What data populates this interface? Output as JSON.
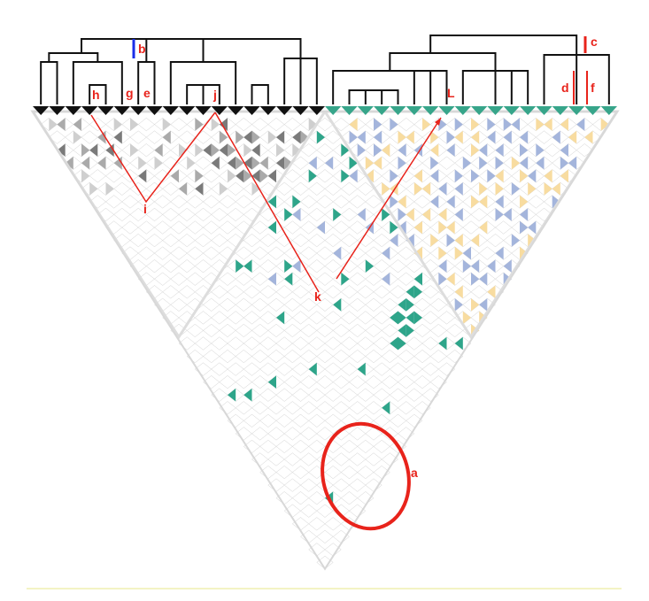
{
  "colors": {
    "annotation": "#e8231b",
    "dendro": "#111111",
    "split_marker": "#1b2ee8",
    "cell_outline": "#d0d0d0",
    "dark_grey": "#7a7a7a",
    "mid_grey": "#aaaaaa",
    "light_grey": "#cfcfcf",
    "teal": "#2ea58a",
    "lavender": "#a4b5dc",
    "peach": "#f8dca0",
    "tip_black": "#111111",
    "tip_teal": "#37a58a"
  },
  "labels": {
    "a": "a",
    "b": "b",
    "c": "c",
    "d": "d",
    "e": "e",
    "f": "f",
    "g": "g",
    "h": "h",
    "i": "i",
    "j": "j",
    "k": "k",
    "L": "L"
  },
  "diagram": {
    "tips_left": 18,
    "tips_right": 18,
    "icons": [
      "dendrogram-left",
      "dendrogram-right",
      "triangle-matrix",
      "highlight-ellipse",
      "red-arrows"
    ]
  }
}
